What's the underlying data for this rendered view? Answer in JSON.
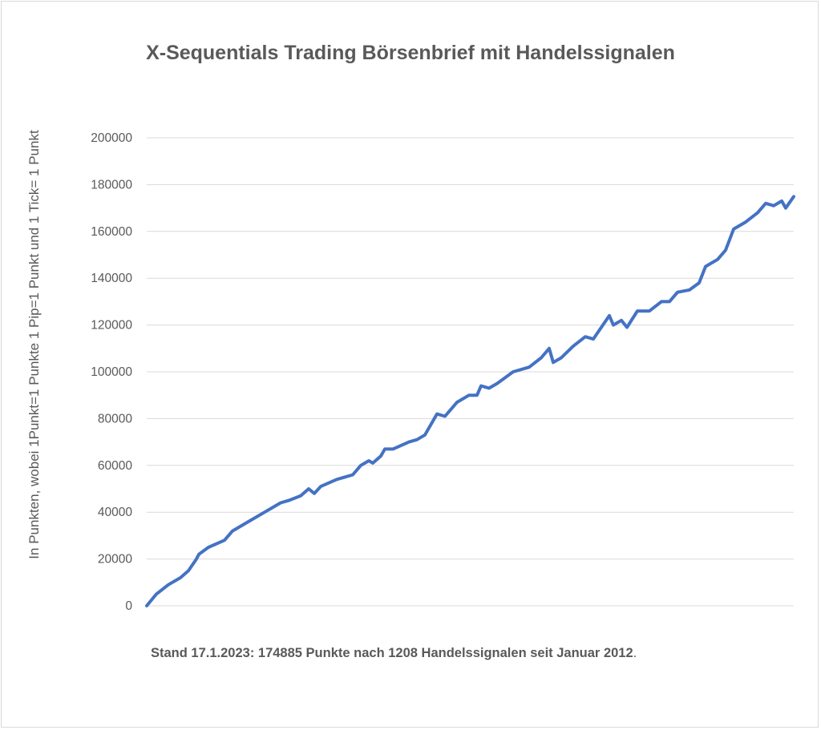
{
  "chart_data": {
    "type": "line",
    "title": "X-Sequentials Trading Börsenbrief mit Handelssignalen",
    "xlabel": "",
    "ylabel": "In Punkten, wobei 1Punkt=1 Punkte 1 Pip=1 Punkt und 1 Tick= 1 Punkt",
    "ylim": [
      0,
      200000
    ],
    "yticks": [
      "0",
      "20000",
      "40000",
      "60000",
      "80000",
      "100000",
      "120000",
      "140000",
      "160000",
      "180000",
      "200000"
    ],
    "grid": true,
    "line_color": "#4472c4",
    "values": [
      0,
      5000,
      9000,
      12000,
      15000,
      20000,
      22000,
      25000,
      28000,
      32000,
      36000,
      40000,
      44000,
      45000,
      47000,
      50000,
      48000,
      51000,
      54000,
      55000,
      56000,
      60000,
      62000,
      61000,
      64000,
      67000,
      67000,
      70000,
      71000,
      73000,
      82000,
      81000,
      87000,
      90000,
      90000,
      94000,
      93000,
      95000,
      100000,
      102000,
      106000,
      110000,
      104000,
      106000,
      111000,
      115000,
      114000,
      124000,
      120000,
      122000,
      119000,
      126000,
      126000,
      130000,
      130000,
      134000,
      135000,
      138000,
      145000,
      148000,
      152000,
      161000,
      164000,
      168000,
      172000,
      171000,
      173000,
      170000,
      174885
    ]
  },
  "footer": {
    "text": "Stand 17.1.2023: 174885 Punkte nach 1208 Handelssignalen seit Januar 2012",
    "period": "."
  }
}
